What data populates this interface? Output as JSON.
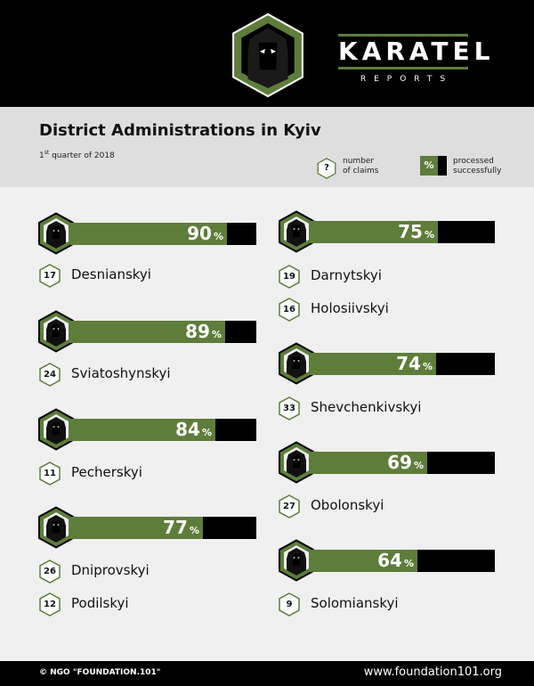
{
  "brand": {
    "name": "KARATEL",
    "sub": "REPORTS",
    "green": "#5e7d3a"
  },
  "title": "District Administrations in Kyiv",
  "subtitle": {
    "ordinal": "1",
    "ordinal_suffix": "st",
    "text": " quarter of 2018"
  },
  "legend": {
    "claims_symbol": "?",
    "claims_line1": "number",
    "claims_line2": "of claims",
    "pct_symbol": "%",
    "processed_line1": "processed",
    "processed_line2": "successfully"
  },
  "districts": {
    "desnianskyi": {
      "name": "Desnianskyi",
      "claims": "17",
      "percent": "90"
    },
    "sviatoshynskyi": {
      "name": "Sviatoshynskyi",
      "claims": "24",
      "percent": "89"
    },
    "pecherskyi": {
      "name": "Pecherskyi",
      "claims": "11",
      "percent": "84"
    },
    "dniprovskyi": {
      "name": "Dniprovskyi",
      "claims": "26",
      "percent": "77"
    },
    "podilskyi": {
      "name": "Podilskyi",
      "claims": "12"
    },
    "darnytskyi": {
      "name": "Darnytskyi",
      "claims": "19",
      "percent": "75"
    },
    "holosiivskyi": {
      "name": "Holosiivskyi",
      "claims": "16"
    },
    "shevchenkivskyi": {
      "name": "Shevchenkivskyi",
      "claims": "33",
      "percent": "74"
    },
    "obolonskyi": {
      "name": "Obolonskyi",
      "claims": "27",
      "percent": "69"
    },
    "solomianskyi": {
      "name": "Solomianskyi",
      "claims": "9",
      "percent": "64"
    }
  },
  "percent_sign": "%",
  "footer": {
    "copyright": "© NGO \"FOUNDATION.101\"",
    "site": "www.foundation101.org"
  }
}
